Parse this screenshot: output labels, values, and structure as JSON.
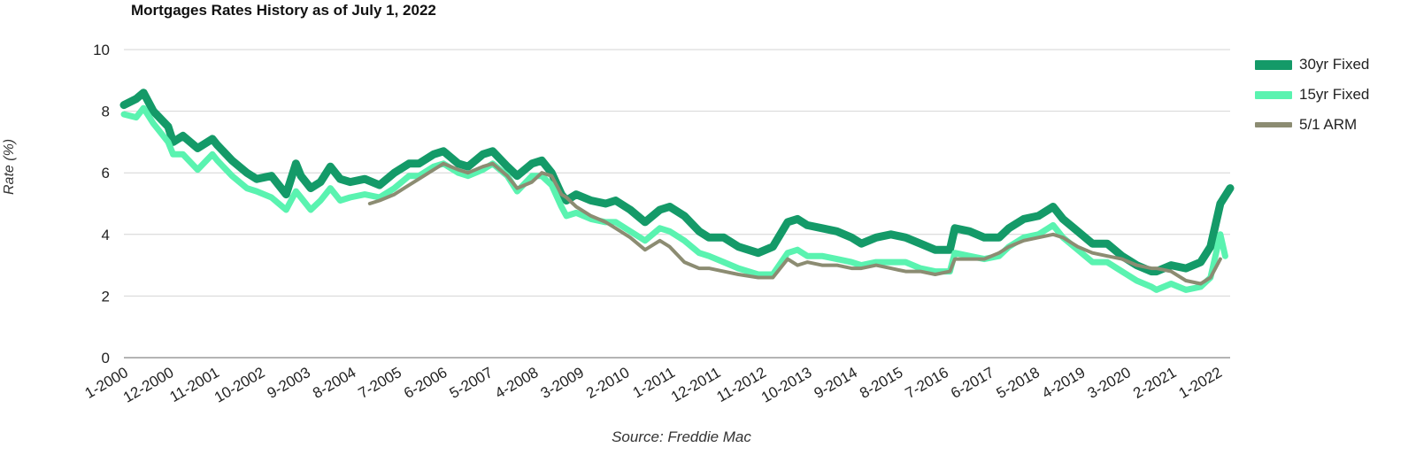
{
  "title": "Mortgages Rates History as of July 1, 2022",
  "source": "Source: Freddie Mac",
  "chart_data": {
    "type": "line",
    "title": "Mortgages Rates History as of July 1, 2022",
    "xlabel": "",
    "ylabel": "Rate (%)",
    "ylim": [
      0,
      10
    ],
    "yticks": [
      0,
      2,
      4,
      6,
      8,
      10
    ],
    "grid": "horizontal",
    "legend_position": "right",
    "x_tick_labels": [
      "1-2000",
      "12-2000",
      "11-2001",
      "10-2002",
      "9-2003",
      "8-2004",
      "7-2005",
      "6-2006",
      "5-2007",
      "4-2008",
      "3-2009",
      "2-2010",
      "1-2011",
      "12-2011",
      "11-2012",
      "10-2013",
      "9-2014",
      "8-2015",
      "7-2016",
      "6-2017",
      "5-2018",
      "4-2019",
      "3-2020",
      "2-2021",
      "1-2022"
    ],
    "series": [
      {
        "name": "30yr Fixed",
        "color": "#149a68",
        "stroke_width": 9,
        "x": [
          2000.0,
          2000.25,
          2000.4,
          2000.6,
          2000.9,
          2001.0,
          2001.2,
          2001.5,
          2001.8,
          2001.9,
          2002.2,
          2002.5,
          2002.7,
          2003.0,
          2003.3,
          2003.5,
          2003.6,
          2003.8,
          2004.0,
          2004.2,
          2004.4,
          2004.6,
          2004.9,
          2005.2,
          2005.5,
          2005.8,
          2006.0,
          2006.3,
          2006.5,
          2006.8,
          2007.0,
          2007.3,
          2007.5,
          2007.8,
          2008.0,
          2008.3,
          2008.5,
          2008.7,
          2008.9,
          2009.0,
          2009.2,
          2009.5,
          2009.8,
          2010.0,
          2010.3,
          2010.6,
          2010.9,
          2011.1,
          2011.4,
          2011.7,
          2011.9,
          2012.2,
          2012.5,
          2012.9,
          2013.2,
          2013.5,
          2013.7,
          2013.9,
          2014.2,
          2014.5,
          2014.8,
          2015.0,
          2015.3,
          2015.6,
          2015.9,
          2016.2,
          2016.5,
          2016.8,
          2016.9,
          2017.2,
          2017.5,
          2017.8,
          2018.0,
          2018.3,
          2018.6,
          2018.9,
          2019.1,
          2019.4,
          2019.7,
          2020.0,
          2020.3,
          2020.6,
          2020.9,
          2021.0,
          2021.3,
          2021.6,
          2021.9,
          2022.1,
          2022.3,
          2022.5
        ],
        "y": [
          8.2,
          8.4,
          8.6,
          8.0,
          7.5,
          7.0,
          7.2,
          6.8,
          7.1,
          6.9,
          6.4,
          6.0,
          5.8,
          5.9,
          5.3,
          6.3,
          5.9,
          5.5,
          5.7,
          6.2,
          5.8,
          5.7,
          5.8,
          5.6,
          6.0,
          6.3,
          6.3,
          6.6,
          6.7,
          6.3,
          6.2,
          6.6,
          6.7,
          6.2,
          5.9,
          6.3,
          6.4,
          6.0,
          5.3,
          5.1,
          5.3,
          5.1,
          5.0,
          5.1,
          4.8,
          4.4,
          4.8,
          4.9,
          4.6,
          4.1,
          3.9,
          3.9,
          3.6,
          3.4,
          3.6,
          4.4,
          4.5,
          4.3,
          4.2,
          4.1,
          3.9,
          3.7,
          3.9,
          4.0,
          3.9,
          3.7,
          3.5,
          3.5,
          4.2,
          4.1,
          3.9,
          3.9,
          4.2,
          4.5,
          4.6,
          4.9,
          4.5,
          4.1,
          3.7,
          3.7,
          3.3,
          3.0,
          2.8,
          2.8,
          3.0,
          2.9,
          3.1,
          3.6,
          5.0,
          5.5
        ]
      },
      {
        "name": "15yr Fixed",
        "color": "#5af3b0",
        "stroke_width": 7,
        "x": [
          2000.0,
          2000.25,
          2000.4,
          2000.6,
          2000.9,
          2001.0,
          2001.2,
          2001.5,
          2001.8,
          2001.9,
          2002.2,
          2002.5,
          2002.7,
          2003.0,
          2003.3,
          2003.5,
          2003.6,
          2003.8,
          2004.0,
          2004.2,
          2004.4,
          2004.6,
          2004.9,
          2005.2,
          2005.5,
          2005.8,
          2006.0,
          2006.3,
          2006.5,
          2006.8,
          2007.0,
          2007.3,
          2007.5,
          2007.8,
          2008.0,
          2008.3,
          2008.5,
          2008.7,
          2008.9,
          2009.0,
          2009.2,
          2009.5,
          2009.8,
          2010.0,
          2010.3,
          2010.6,
          2010.9,
          2011.1,
          2011.4,
          2011.7,
          2011.9,
          2012.2,
          2012.5,
          2012.9,
          2013.2,
          2013.5,
          2013.7,
          2013.9,
          2014.2,
          2014.5,
          2014.8,
          2015.0,
          2015.3,
          2015.6,
          2015.9,
          2016.2,
          2016.5,
          2016.8,
          2016.9,
          2017.2,
          2017.5,
          2017.8,
          2018.0,
          2018.3,
          2018.6,
          2018.9,
          2019.1,
          2019.4,
          2019.7,
          2020.0,
          2020.3,
          2020.6,
          2020.9,
          2021.0,
          2021.3,
          2021.6,
          2021.9,
          2022.1,
          2022.3,
          2022.4
        ],
        "y": [
          7.9,
          7.8,
          8.1,
          7.6,
          7.0,
          6.6,
          6.6,
          6.1,
          6.6,
          6.4,
          5.9,
          5.5,
          5.4,
          5.2,
          4.8,
          5.4,
          5.2,
          4.8,
          5.1,
          5.5,
          5.1,
          5.2,
          5.3,
          5.2,
          5.5,
          5.9,
          5.9,
          6.2,
          6.3,
          6.0,
          5.9,
          6.1,
          6.3,
          5.9,
          5.4,
          5.9,
          5.9,
          5.6,
          4.9,
          4.6,
          4.7,
          4.5,
          4.4,
          4.4,
          4.1,
          3.8,
          4.2,
          4.1,
          3.8,
          3.4,
          3.3,
          3.1,
          2.9,
          2.7,
          2.7,
          3.4,
          3.5,
          3.3,
          3.3,
          3.2,
          3.1,
          3.0,
          3.1,
          3.1,
          3.1,
          2.9,
          2.8,
          2.8,
          3.4,
          3.3,
          3.2,
          3.3,
          3.6,
          3.9,
          4.0,
          4.3,
          3.9,
          3.5,
          3.1,
          3.1,
          2.8,
          2.5,
          2.3,
          2.2,
          2.4,
          2.2,
          2.3,
          2.6,
          4.0,
          3.3
        ]
      },
      {
        "name": "5/1 ARM",
        "color": "#8c8c72",
        "stroke_width": 4,
        "x": [
          2005.0,
          2005.2,
          2005.5,
          2005.8,
          2006.0,
          2006.3,
          2006.5,
          2006.8,
          2007.0,
          2007.3,
          2007.5,
          2007.8,
          2008.0,
          2008.3,
          2008.5,
          2008.7,
          2008.9,
          2009.0,
          2009.2,
          2009.5,
          2009.8,
          2010.0,
          2010.3,
          2010.6,
          2010.9,
          2011.1,
          2011.4,
          2011.7,
          2011.9,
          2012.2,
          2012.5,
          2012.9,
          2013.2,
          2013.5,
          2013.7,
          2013.9,
          2014.2,
          2014.5,
          2014.8,
          2015.0,
          2015.3,
          2015.6,
          2015.9,
          2016.2,
          2016.5,
          2016.8,
          2016.9,
          2017.2,
          2017.5,
          2017.8,
          2018.0,
          2018.3,
          2018.6,
          2018.9,
          2019.1,
          2019.4,
          2019.7,
          2020.0,
          2020.3,
          2020.6,
          2020.9,
          2021.0,
          2021.3,
          2021.6,
          2021.9,
          2022.1,
          2022.3
        ],
        "y": [
          5.0,
          5.1,
          5.3,
          5.6,
          5.8,
          6.1,
          6.3,
          6.1,
          6.0,
          6.2,
          6.3,
          5.9,
          5.5,
          5.7,
          6.0,
          5.9,
          5.3,
          5.2,
          4.9,
          4.6,
          4.4,
          4.2,
          3.9,
          3.5,
          3.8,
          3.6,
          3.1,
          2.9,
          2.9,
          2.8,
          2.7,
          2.6,
          2.6,
          3.2,
          3.0,
          3.1,
          3.0,
          3.0,
          2.9,
          2.9,
          3.0,
          2.9,
          2.8,
          2.8,
          2.7,
          2.8,
          3.2,
          3.2,
          3.2,
          3.4,
          3.6,
          3.8,
          3.9,
          4.0,
          3.9,
          3.6,
          3.4,
          3.3,
          3.2,
          3.0,
          2.9,
          2.9,
          2.8,
          2.5,
          2.4,
          2.6,
          3.2
        ]
      }
    ]
  }
}
